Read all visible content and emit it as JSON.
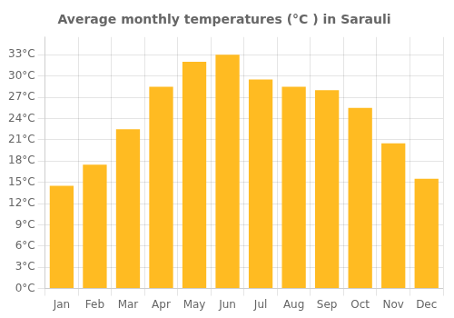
{
  "chart_data": {
    "type": "bar",
    "title": "Average monthly temperatures (°C ) in Sarauli",
    "categories": [
      "Jan",
      "Feb",
      "Mar",
      "Apr",
      "May",
      "Jun",
      "Jul",
      "Aug",
      "Sep",
      "Oct",
      "Nov",
      "Dec"
    ],
    "values": [
      14.5,
      17.5,
      22.5,
      28.5,
      32.0,
      33.0,
      29.5,
      28.5,
      28.0,
      25.5,
      20.5,
      15.5
    ],
    "color": "#FFBB22",
    "ylim": [
      0,
      35.5
    ],
    "yticks": [
      {
        "value": 0,
        "label": "0°C"
      },
      {
        "value": 3,
        "label": "3°C"
      },
      {
        "value": 6,
        "label": "6°C"
      },
      {
        "value": 9,
        "label": "9°C"
      },
      {
        "value": 12,
        "label": "12°C"
      },
      {
        "value": 15,
        "label": "15°C"
      },
      {
        "value": 18,
        "label": "18°C"
      },
      {
        "value": 21,
        "label": "21°C"
      },
      {
        "value": 24,
        "label": "24°C"
      },
      {
        "value": 27,
        "label": "27°C"
      },
      {
        "value": 30,
        "label": "30°C"
      },
      {
        "value": 33,
        "label": "33°C"
      }
    ],
    "grid": true
  }
}
